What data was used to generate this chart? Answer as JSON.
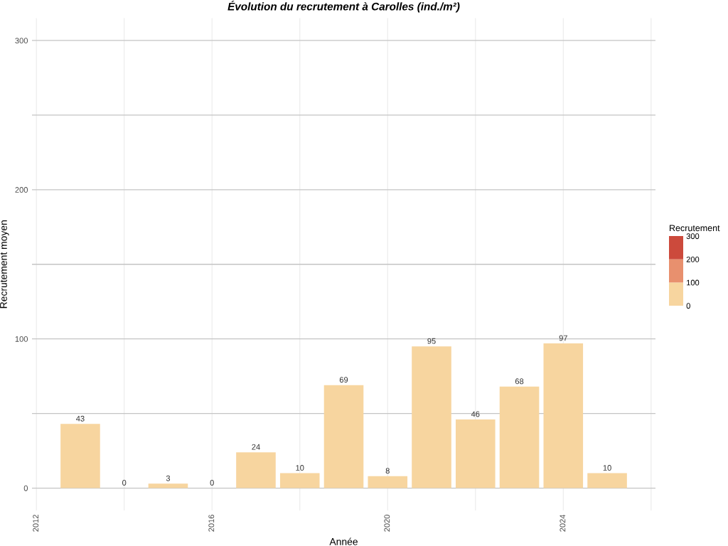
{
  "chart_data": {
    "type": "bar",
    "title": "Évolution du recrutement à Carolles (ind./m²)",
    "xlabel": "Année",
    "ylabel": "Recrutement moyen",
    "x": [
      2013,
      2014,
      2015,
      2016,
      2017,
      2018,
      2019,
      2020,
      2021,
      2022,
      2023,
      2024,
      2025
    ],
    "values": [
      43,
      0,
      3,
      0,
      24,
      10,
      69,
      8,
      95,
      46,
      68,
      97,
      10
    ],
    "color": "#f7d59f",
    "xlim": [
      2011.9,
      2026.1
    ],
    "xticks": [
      2012,
      {
        "value": 2014,
        "label": null
      },
      2016,
      {
        "value": 2018,
        "label": null
      },
      2020,
      {
        "value": 2022,
        "label": null
      },
      2024,
      {
        "value": 2026,
        "label": null
      }
    ],
    "ylim": [
      -15,
      315
    ],
    "yticks": [
      0,
      {
        "value": 50,
        "label": null
      },
      100,
      {
        "value": 150,
        "label": null
      },
      200,
      {
        "value": 250,
        "label": null
      },
      300
    ],
    "grid": true,
    "data_labels": true,
    "clabel": "Recrutement",
    "clim": [
      0,
      300
    ],
    "cticks": [
      0,
      100,
      200,
      300
    ]
  }
}
